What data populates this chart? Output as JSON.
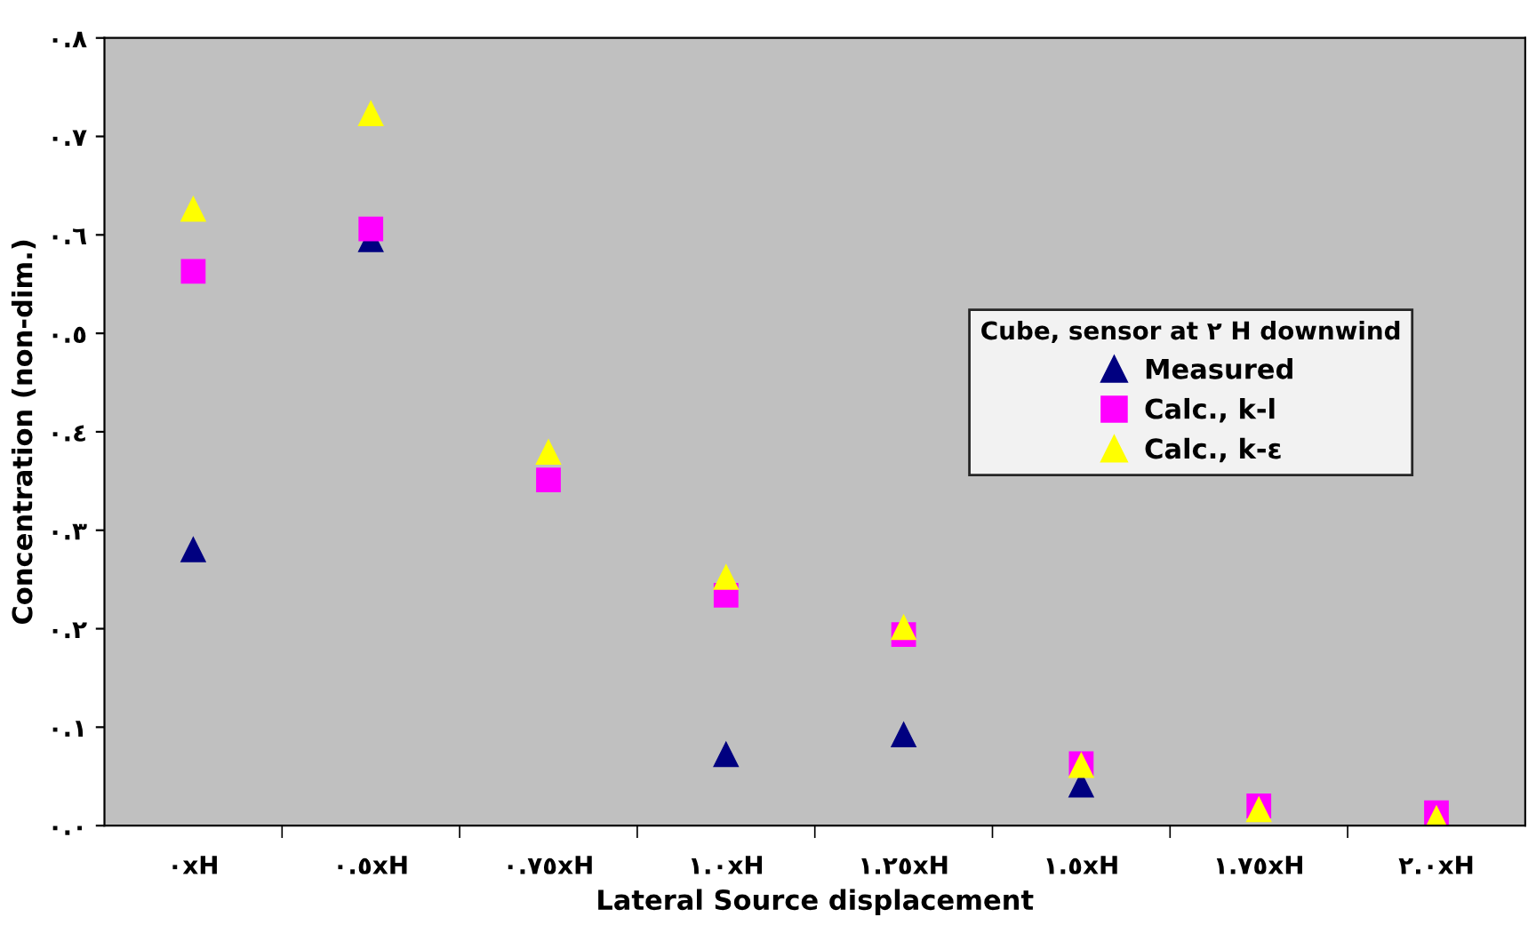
{
  "chart_data": {
    "type": "scatter",
    "xlabel": "Lateral Source displacement",
    "ylabel": "Concentration (non-dim.)",
    "legend_title": "Cube, sensor at ٢ H downwind",
    "categories": [
      "٠xH",
      "٠.٥xH",
      "٠.٧٥xH",
      "١.٠xH",
      "١.٢٥xH",
      "١.٥xH",
      "١.٧٥xH",
      "٢.٠xH"
    ],
    "series": [
      {
        "name": "Measured",
        "color": "#000080",
        "marker": "triangle",
        "values": [
          0.28,
          0.595,
          null,
          0.072,
          0.092,
          0.041,
          null,
          null
        ]
      },
      {
        "name": "Calc., k-l",
        "color": "#ff00ff",
        "marker": "square",
        "values": [
          0.563,
          0.606,
          0.351,
          0.234,
          0.194,
          0.063,
          0.02,
          0.013
        ]
      },
      {
        "name": "Calc., k-ε",
        "color": "#ffff00",
        "marker": "triangle",
        "values": [
          0.626,
          0.723,
          0.379,
          0.252,
          0.201,
          0.061,
          0.016,
          0.007
        ]
      }
    ],
    "ylim": [
      0,
      0.8
    ],
    "yticks": [
      {
        "value": 0,
        "label": "٠.٠"
      },
      {
        "value": 0.1,
        "label": "٠.١"
      },
      {
        "value": 0.2,
        "label": "٠.٢"
      },
      {
        "value": 0.3,
        "label": "٠.٣"
      },
      {
        "value": 0.4,
        "label": "٠.٤"
      },
      {
        "value": 0.5,
        "label": "٠.٥"
      },
      {
        "value": 0.6,
        "label": "٠.٦"
      },
      {
        "value": 0.7,
        "label": "٠.٧"
      },
      {
        "value": 0.8,
        "label": "٠.٨"
      }
    ],
    "grid": false,
    "legend": "center right"
  }
}
